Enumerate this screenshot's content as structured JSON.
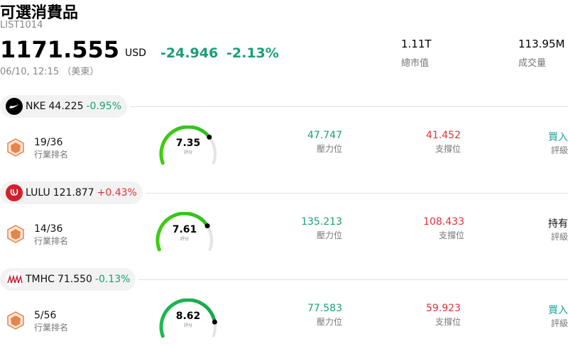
{
  "header": {
    "title": "可選消費品",
    "code": "LIST1014",
    "price": "1171.555",
    "currency": "USD",
    "change": "-24.946",
    "change_pct": "-2.13%",
    "time": "06/10, 12:15 （美東）",
    "stats": [
      {
        "value": "1.11T",
        "label": "總市值"
      },
      {
        "value": "113.95M",
        "label": "成交量"
      }
    ]
  },
  "stocks": [
    {
      "ticker": "NKE",
      "price": "44.225",
      "change": "-0.95%",
      "rank": "19/36",
      "rank_label": "行業排名",
      "score": "7.35",
      "score_label": "評分",
      "resistance": "47.747",
      "resistance_label": "壓力位",
      "support": "41.452",
      "support_label": "支撐位",
      "rating": "買入",
      "rating_label": "評級",
      "rating_color": "#1aa39a",
      "logo_color": "#000000"
    },
    {
      "ticker": "LULU",
      "price": "121.877",
      "change": "+0.43%",
      "rank": "14/36",
      "rank_label": "行業排名",
      "score": "7.61",
      "score_label": "評分",
      "resistance": "135.213",
      "resistance_label": "壓力位",
      "support": "108.433",
      "support_label": "支撐位",
      "rating": "持有",
      "rating_label": "評級",
      "rating_color": "#111111",
      "logo_color": "#d2202f"
    },
    {
      "ticker": "TMHC",
      "price": "71.550",
      "change": "-0.13%",
      "rank": "5/56",
      "rank_label": "行業排名",
      "score": "8.62",
      "score_label": "評分",
      "resistance": "77.583",
      "resistance_label": "壓力位",
      "support": "59.923",
      "support_label": "支撐位",
      "rating": "買入",
      "rating_label": "評級",
      "rating_color": "#1aa39a",
      "logo_color": "#ffffff"
    }
  ]
}
